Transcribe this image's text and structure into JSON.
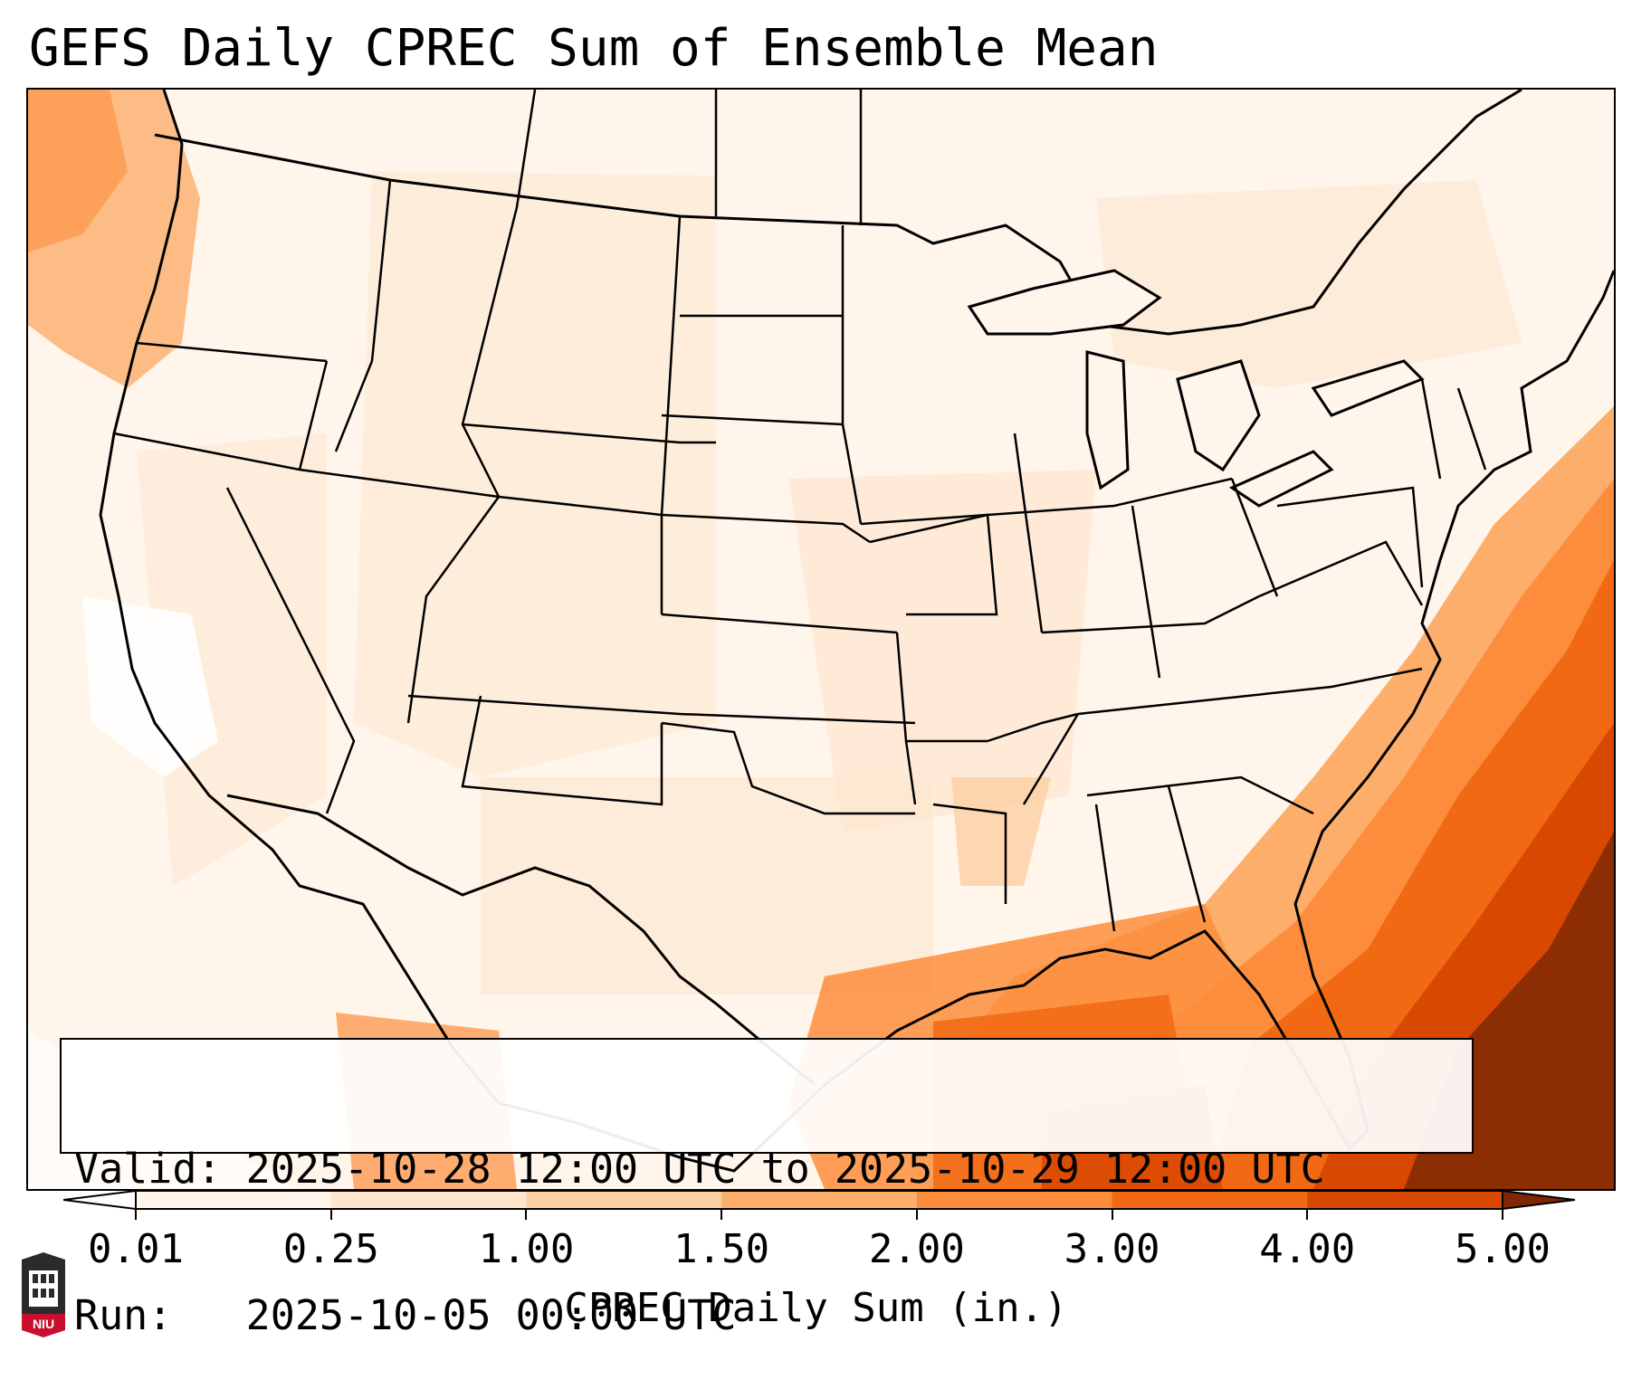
{
  "title": "GEFS Daily CPREC Sum of Ensemble Mean",
  "info_box": {
    "valid_line": "Valid: 2025-10-28 12:00 UTC to 2025-10-29 12:00 UTC",
    "run_line": "Run:   2025-10-05 00:00 UTC"
  },
  "colorbar": {
    "label": "CPREC Daily Sum (in.)",
    "ticks": [
      "0.01",
      "0.25",
      "1.00",
      "1.50",
      "2.00",
      "3.00",
      "4.00",
      "5.00"
    ],
    "colors": [
      "#fff5eb",
      "#fee6ce",
      "#fdd0a2",
      "#fdae6b",
      "#fd8d3c",
      "#f16913",
      "#d94801",
      "#8c2d04"
    ],
    "under_color": "#ffffff",
    "over_color": "#7f2704",
    "extend": "both"
  },
  "logo": {
    "text": "NIU",
    "name": "niu-logo"
  }
}
